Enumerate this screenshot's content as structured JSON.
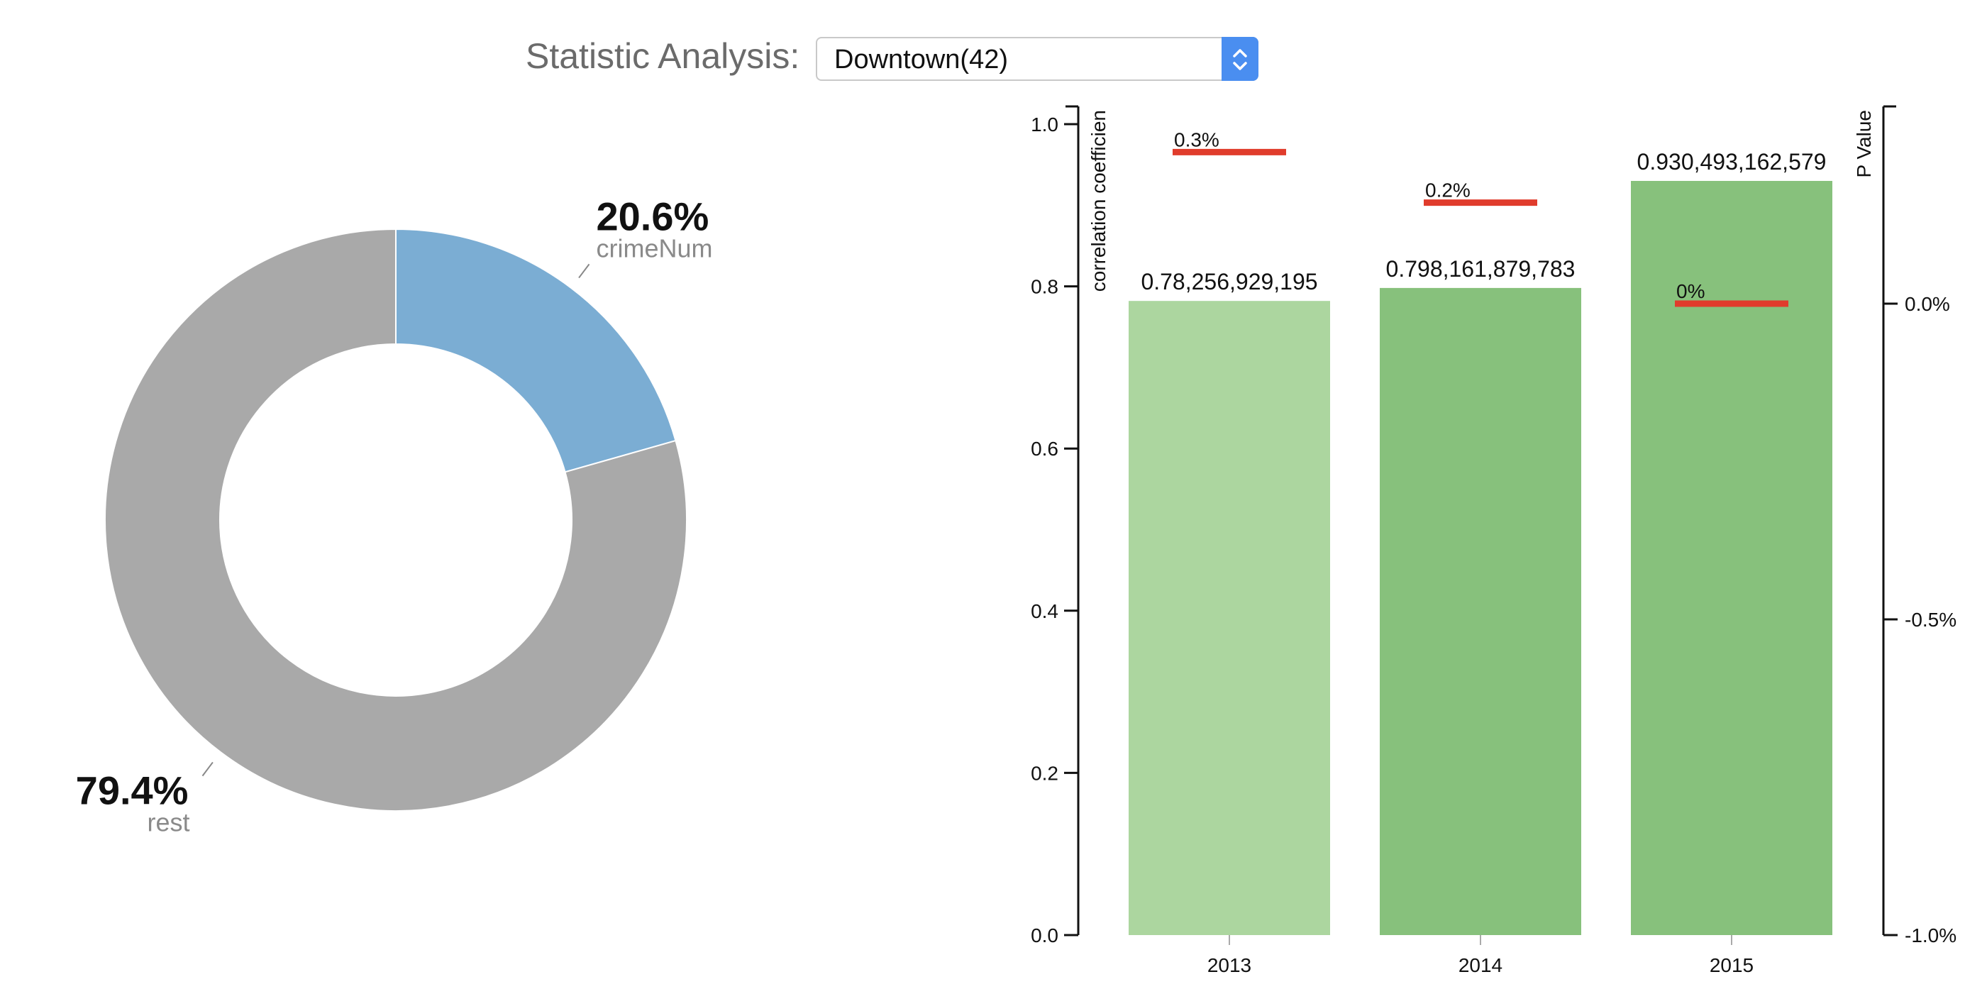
{
  "header": {
    "label": "Statistic Analysis:",
    "selected_region": "Downtown(42)"
  },
  "colors": {
    "pie_highlight": "#7badd3",
    "pie_rest": "#a9a9a9",
    "bar_2013": "#acd69f",
    "bar_other": "#87c17c",
    "pvalue_line": "#e03c2c",
    "axis": "#111111"
  },
  "icons": {
    "select_arrows": "updown-chevron-icon"
  },
  "chart_data": [
    {
      "type": "pie",
      "variant": "donut",
      "slices": [
        {
          "name": "crimeNum",
          "value": 20.6,
          "label": "20.6%"
        },
        {
          "name": "rest",
          "value": 79.4,
          "label": "79.4%"
        }
      ]
    },
    {
      "type": "bar",
      "categories": [
        "2013",
        "2014",
        "2015"
      ],
      "values": [
        0.782,
        0.798,
        0.93
      ],
      "value_labels": [
        "0.78,256,929,195",
        "0.798,161,879,783",
        "0.930,493,162,579"
      ],
      "ylabel": "correlation coefficien",
      "ylim": [
        0,
        1
      ],
      "y_ticks": [
        "0.0",
        "0.2",
        "0.4",
        "0.6",
        "0.8",
        "1.0"
      ],
      "secondary_axis": {
        "ylabel": "P Value",
        "ylim": [
          -1.0,
          0.2
        ],
        "ticks": [
          {
            "value": 0.0,
            "label": "0.0%"
          },
          {
            "value": -0.5,
            "label": "-0.5%"
          },
          {
            "value": -1.0,
            "label": "-1.0%"
          }
        ]
      },
      "p_values": [
        {
          "category": "2013",
          "value": 0.3,
          "label": "0.3%"
        },
        {
          "category": "2014",
          "value": 0.2,
          "label": "0.2%"
        },
        {
          "category": "2015",
          "value": 0.0,
          "label": "0%"
        }
      ]
    }
  ]
}
